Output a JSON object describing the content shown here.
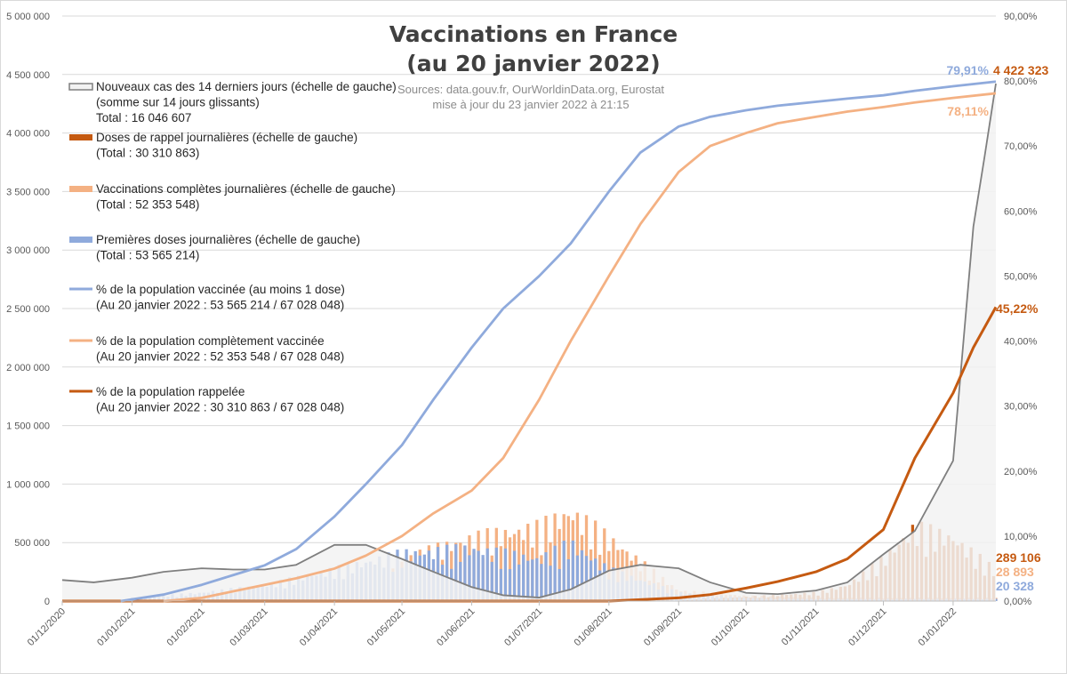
{
  "chart_data": {
    "type": "line",
    "title": [
      "Vaccinations en France",
      "(au 20 janvier 2022)"
    ],
    "sources": [
      "Sources: data.gouv.fr, OurWorldinData.org, Eurostat",
      "mise à jour du 23 janvier 2022 à 21:15"
    ],
    "y_left": {
      "range": [
        0,
        5000000
      ],
      "ticks": [
        "0",
        "500 000",
        "1 000 000",
        "1 500 000",
        "2 000 000",
        "2 500 000",
        "3 000 000",
        "3 500 000",
        "4 000 000",
        "4 500 000",
        "5 000 000"
      ]
    },
    "y_right": {
      "range": [
        0,
        90
      ],
      "ticks": [
        "0,00%",
        "10,00%",
        "20,00%",
        "30,00%",
        "40,00%",
        "50,00%",
        "60,00%",
        "70,00%",
        "80,00%",
        "90,00%"
      ]
    },
    "x_ticks": [
      "01/12/2020",
      "01/01/2021",
      "01/02/2021",
      "01/03/2021",
      "01/04/2021",
      "01/05/2021",
      "01/06/2021",
      "01/07/2021",
      "01/08/2021",
      "01/09/2021",
      "01/10/2021",
      "01/11/2021",
      "01/12/2021",
      "01/01/2022"
    ],
    "grid": true,
    "colors": {
      "cases_fill": "#f2f2f2",
      "cases_line": "#7f7f7f",
      "booster": "#c55a11",
      "complete": "#f4b183",
      "first": "#8faadc",
      "pct_first": "#8faadc",
      "pct_complete": "#f4b183",
      "pct_booster": "#c55a11"
    },
    "legend": [
      {
        "key": "cases",
        "lines": [
          "Nouveaux cas des 14 derniers jours (échelle de gauche)",
          "(somme sur 14 jours glissants)",
          "Total : 16 046 607"
        ]
      },
      {
        "key": "booster",
        "lines": [
          "Doses de rappel journalières (échelle de gauche)",
          "(Total : 30 310 863)"
        ]
      },
      {
        "key": "complete",
        "lines": [
          "Vaccinations complètes journalières (échelle de gauche)",
          "(Total : 52 353 548)"
        ]
      },
      {
        "key": "first",
        "lines": [
          "Premières doses journalières (échelle de gauche)",
          "(Total : 53 565 214)"
        ]
      },
      {
        "key": "pct_first",
        "lines": [
          "% de la population vaccinée (au moins 1 dose)",
          "(Au 20 janvier 2022 : 53 565 214 / 67 028 048)"
        ]
      },
      {
        "key": "pct_complete",
        "lines": [
          "% de la population complètement vaccinée",
          "(Au 20 janvier 2022 : 52 353 548 / 67 028 048)"
        ]
      },
      {
        "key": "pct_booster",
        "lines": [
          "% de la population rappelée",
          "(Au 20 janvier 2022 : 30 310 863 / 67 028 048)"
        ]
      }
    ],
    "end_labels": {
      "pct_first": "79,91%",
      "cases": "4 422 323",
      "pct_complete": "78,11%",
      "pct_booster": "45,22%",
      "booster": "289 106",
      "complete": "28 893",
      "first": "20 328"
    },
    "series": [
      {
        "key": "cases",
        "axis": "left",
        "x": [
          "2020-12-01",
          "2020-12-15",
          "2021-01-01",
          "2021-01-15",
          "2021-02-01",
          "2021-02-15",
          "2021-03-01",
          "2021-03-15",
          "2021-04-01",
          "2021-04-15",
          "2021-05-01",
          "2021-05-15",
          "2021-06-01",
          "2021-06-15",
          "2021-07-01",
          "2021-07-15",
          "2021-08-01",
          "2021-08-15",
          "2021-09-01",
          "2021-09-15",
          "2021-10-01",
          "2021-10-15",
          "2021-11-01",
          "2021-11-15",
          "2021-12-01",
          "2021-12-15",
          "2022-01-01",
          "2022-01-10",
          "2022-01-15",
          "2022-01-20"
        ],
        "values": [
          180000,
          160000,
          200000,
          250000,
          280000,
          270000,
          270000,
          310000,
          480000,
          480000,
          360000,
          250000,
          120000,
          50000,
          30000,
          100000,
          260000,
          310000,
          280000,
          160000,
          70000,
          60000,
          90000,
          160000,
          400000,
          600000,
          1200000,
          3200000,
          3800000,
          4422323
        ]
      },
      {
        "key": "pct_first",
        "axis": "right",
        "x": [
          "2020-12-27",
          "2021-01-15",
          "2021-02-01",
          "2021-02-15",
          "2021-03-01",
          "2021-03-15",
          "2021-04-01",
          "2021-04-15",
          "2021-05-01",
          "2021-05-15",
          "2021-06-01",
          "2021-06-15",
          "2021-07-01",
          "2021-07-15",
          "2021-08-01",
          "2021-08-15",
          "2021-09-01",
          "2021-09-15",
          "2021-10-01",
          "2021-10-15",
          "2021-11-01",
          "2021-11-15",
          "2021-12-01",
          "2021-12-15",
          "2022-01-01",
          "2022-01-20"
        ],
        "values": [
          0,
          1,
          2.5,
          4,
          5.5,
          8,
          13,
          18,
          24,
          31,
          39,
          45,
          50,
          55,
          63,
          69,
          73,
          74.5,
          75.5,
          76.2,
          76.8,
          77.3,
          77.8,
          78.5,
          79.2,
          79.91
        ]
      },
      {
        "key": "pct_complete",
        "axis": "right",
        "x": [
          "2021-01-15",
          "2021-02-01",
          "2021-02-15",
          "2021-03-01",
          "2021-03-15",
          "2021-04-01",
          "2021-04-15",
          "2021-05-01",
          "2021-05-15",
          "2021-06-01",
          "2021-06-15",
          "2021-07-01",
          "2021-07-15",
          "2021-08-01",
          "2021-08-15",
          "2021-09-01",
          "2021-09-15",
          "2021-10-01",
          "2021-10-15",
          "2021-11-01",
          "2021-11-15",
          "2021-12-01",
          "2021-12-15",
          "2022-01-01",
          "2022-01-20"
        ],
        "values": [
          0,
          0.5,
          1.5,
          2.5,
          3.5,
          5,
          7,
          10,
          13.5,
          17,
          22,
          31,
          40,
          50,
          58,
          66,
          70,
          72,
          73.5,
          74.5,
          75.3,
          76,
          76.7,
          77.4,
          78.11
        ]
      },
      {
        "key": "pct_booster",
        "axis": "right",
        "x": [
          "2020-12-01",
          "2021-08-01",
          "2021-09-01",
          "2021-09-15",
          "2021-10-01",
          "2021-10-15",
          "2021-11-01",
          "2021-11-15",
          "2021-12-01",
          "2021-12-15",
          "2022-01-01",
          "2022-01-10",
          "2022-01-20"
        ],
        "values": [
          0,
          0,
          0.5,
          1,
          2,
          3,
          4.5,
          6.5,
          11,
          22,
          32,
          39,
          45.22
        ]
      },
      {
        "key": "booster",
        "axis": "left",
        "type": "bar",
        "x": [
          "2021-09-01",
          "2021-10-01",
          "2021-11-01",
          "2021-11-15",
          "2021-12-01",
          "2021-12-15",
          "2022-01-01",
          "2022-01-20"
        ],
        "values": [
          10000,
          40000,
          80000,
          150000,
          400000,
          700000,
          600000,
          289106
        ]
      },
      {
        "key": "complete",
        "axis": "left",
        "type": "bar",
        "x": [
          "2021-01-15",
          "2021-03-01",
          "2021-04-01",
          "2021-05-01",
          "2021-06-01",
          "2021-07-01",
          "2021-07-15",
          "2021-08-01",
          "2021-09-01",
          "2021-10-01",
          "2021-11-01",
          "2022-01-20"
        ],
        "values": [
          20000,
          70000,
          200000,
          400000,
          600000,
          700000,
          850000,
          600000,
          100000,
          50000,
          30000,
          28893
        ]
      },
      {
        "key": "first",
        "axis": "left",
        "type": "bar",
        "x": [
          "2021-01-01",
          "2021-02-01",
          "2021-03-01",
          "2021-04-01",
          "2021-05-01",
          "2021-06-01",
          "2021-07-01",
          "2021-07-15",
          "2021-08-01",
          "2021-09-01",
          "2021-10-01",
          "2021-11-01",
          "2022-01-20"
        ],
        "values": [
          30000,
          80000,
          150000,
          300000,
          450000,
          500000,
          400000,
          550000,
          300000,
          80000,
          30000,
          20000,
          20328
        ]
      }
    ]
  }
}
